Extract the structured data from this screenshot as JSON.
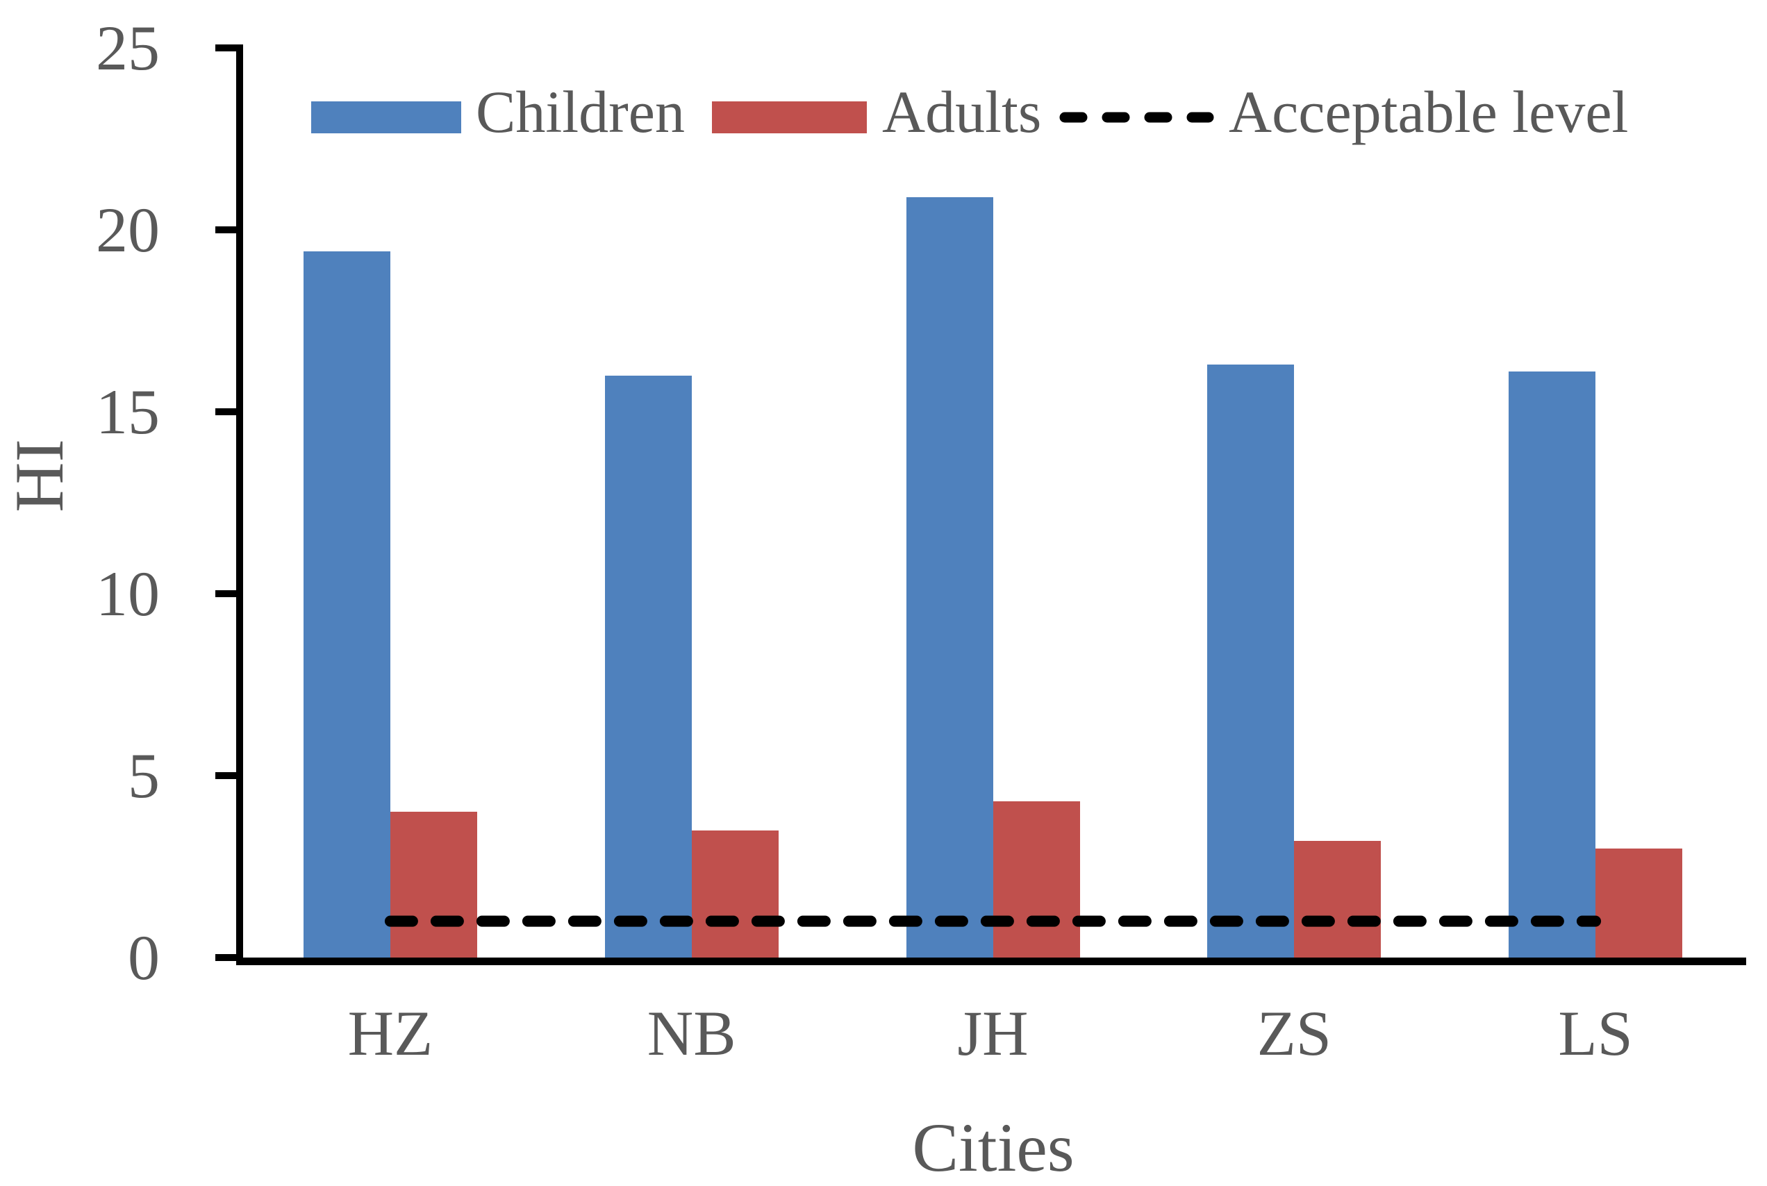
{
  "chart_data": {
    "type": "bar",
    "categories": [
      "HZ",
      "NB",
      "JH",
      "ZS",
      "LS"
    ],
    "series": [
      {
        "name": "Children",
        "color": "#4F81BD",
        "values": [
          19.4,
          16.0,
          20.9,
          16.3,
          16.1
        ]
      },
      {
        "name": "Adults",
        "color": "#C0504D",
        "values": [
          4.0,
          3.5,
          4.3,
          3.2,
          3.0
        ]
      }
    ],
    "reference_line": {
      "label": "Acceptable level",
      "value": 1,
      "style": "dashed",
      "color": "#000000"
    },
    "xlabel": "Cities",
    "ylabel": "HI",
    "ylim": [
      0,
      25
    ],
    "yticks": [
      25,
      20,
      15,
      10,
      5,
      0
    ],
    "legend_position": "top",
    "grid": false
  },
  "styles": {
    "text_color": "#595959",
    "axis_color": "#000000",
    "background": "#FFFFFF"
  }
}
